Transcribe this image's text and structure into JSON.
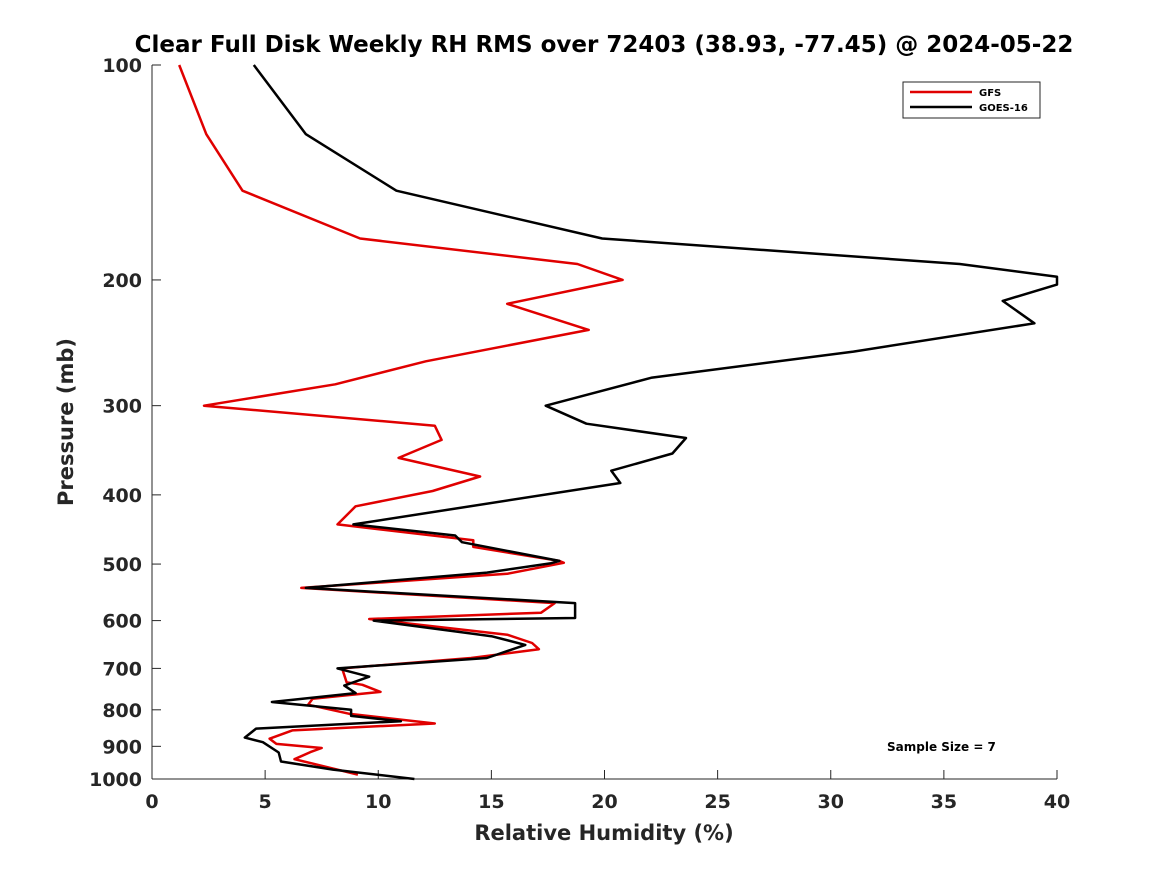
{
  "chart_data": {
    "type": "line",
    "title": "Clear Full Disk Weekly RH RMS over 72403 (38.93, -77.45) @ 2024-05-22",
    "xlabel": "Relative Humidity (%)",
    "ylabel": "Pressure (mb)",
    "xlim": [
      0,
      40
    ],
    "ylim": [
      100,
      1000
    ],
    "y_scale": "log",
    "y_reversed": true,
    "x_ticks": [
      "0",
      "5",
      "10",
      "15",
      "20",
      "25",
      "30",
      "35",
      "40"
    ],
    "y_ticks": [
      "100",
      "200",
      "300",
      "400",
      "500",
      "600",
      "700",
      "800",
      "900",
      "1000"
    ],
    "grid": false,
    "legend_position": "top-right",
    "annotation": "Sample Size = 7",
    "series": [
      {
        "name": "GFS",
        "color": "#e00000",
        "points": [
          [
            1.2,
            100
          ],
          [
            2.4,
            125
          ],
          [
            4.0,
            150
          ],
          [
            9.2,
            175
          ],
          [
            18.8,
            190
          ],
          [
            20.8,
            200
          ],
          [
            15.7,
            216
          ],
          [
            19.3,
            235
          ],
          [
            12.1,
            260
          ],
          [
            8.1,
            280
          ],
          [
            2.3,
            300
          ],
          [
            12.5,
            320
          ],
          [
            12.8,
            335
          ],
          [
            10.9,
            355
          ],
          [
            14.5,
            377
          ],
          [
            12.4,
            395
          ],
          [
            9.0,
            415
          ],
          [
            8.2,
            440
          ],
          [
            14.2,
            463
          ],
          [
            14.2,
            473
          ],
          [
            18.0,
            495
          ],
          [
            18.2,
            498
          ],
          [
            15.7,
            516
          ],
          [
            6.6,
            540
          ],
          [
            17.8,
            567
          ],
          [
            17.2,
            585
          ],
          [
            9.6,
            597
          ],
          [
            15.7,
            628
          ],
          [
            16.8,
            645
          ],
          [
            17.1,
            658
          ],
          [
            14.1,
            677
          ],
          [
            8.4,
            700
          ],
          [
            8.6,
            732
          ],
          [
            9.3,
            738
          ],
          [
            10.1,
            755
          ],
          [
            7.1,
            772
          ],
          [
            6.9,
            787
          ],
          [
            8.7,
            810
          ],
          [
            12.5,
            836
          ],
          [
            6.2,
            855
          ],
          [
            5.2,
            878
          ],
          [
            5.5,
            893
          ],
          [
            7.5,
            905
          ],
          [
            7.0,
            917
          ],
          [
            6.3,
            938
          ],
          [
            7.6,
            960
          ],
          [
            9.1,
            986
          ]
        ]
      },
      {
        "name": "GOES-16",
        "color": "#000000",
        "points": [
          [
            4.5,
            100
          ],
          [
            6.8,
            125
          ],
          [
            10.8,
            150
          ],
          [
            19.9,
            175
          ],
          [
            35.7,
            190
          ],
          [
            40.0,
            198
          ],
          [
            40.0,
            203
          ],
          [
            37.6,
            214
          ],
          [
            39.0,
            230
          ],
          [
            31.0,
            252
          ],
          [
            22.1,
            274
          ],
          [
            17.4,
            300
          ],
          [
            19.2,
            318
          ],
          [
            23.6,
            333
          ],
          [
            23.0,
            350
          ],
          [
            20.3,
            370
          ],
          [
            20.7,
            385
          ],
          [
            8.9,
            440
          ],
          [
            13.4,
            456
          ],
          [
            13.7,
            466
          ],
          [
            18.0,
            495
          ],
          [
            17.6,
            499
          ],
          [
            14.8,
            514
          ],
          [
            6.8,
            540
          ],
          [
            18.7,
            567
          ],
          [
            18.7,
            595
          ],
          [
            9.8,
            600
          ],
          [
            15.0,
            631
          ],
          [
            16.5,
            649
          ],
          [
            14.8,
            677
          ],
          [
            8.2,
            700
          ],
          [
            9.6,
            719
          ],
          [
            8.5,
            740
          ],
          [
            9.0,
            758
          ],
          [
            5.3,
            780
          ],
          [
            8.8,
            800
          ],
          [
            8.8,
            816
          ],
          [
            11.0,
            830
          ],
          [
            4.6,
            850
          ],
          [
            4.1,
            875
          ],
          [
            4.9,
            888
          ],
          [
            5.6,
            918
          ],
          [
            5.7,
            945
          ],
          [
            8.0,
            970
          ],
          [
            11.6,
            1000
          ]
        ]
      }
    ]
  }
}
